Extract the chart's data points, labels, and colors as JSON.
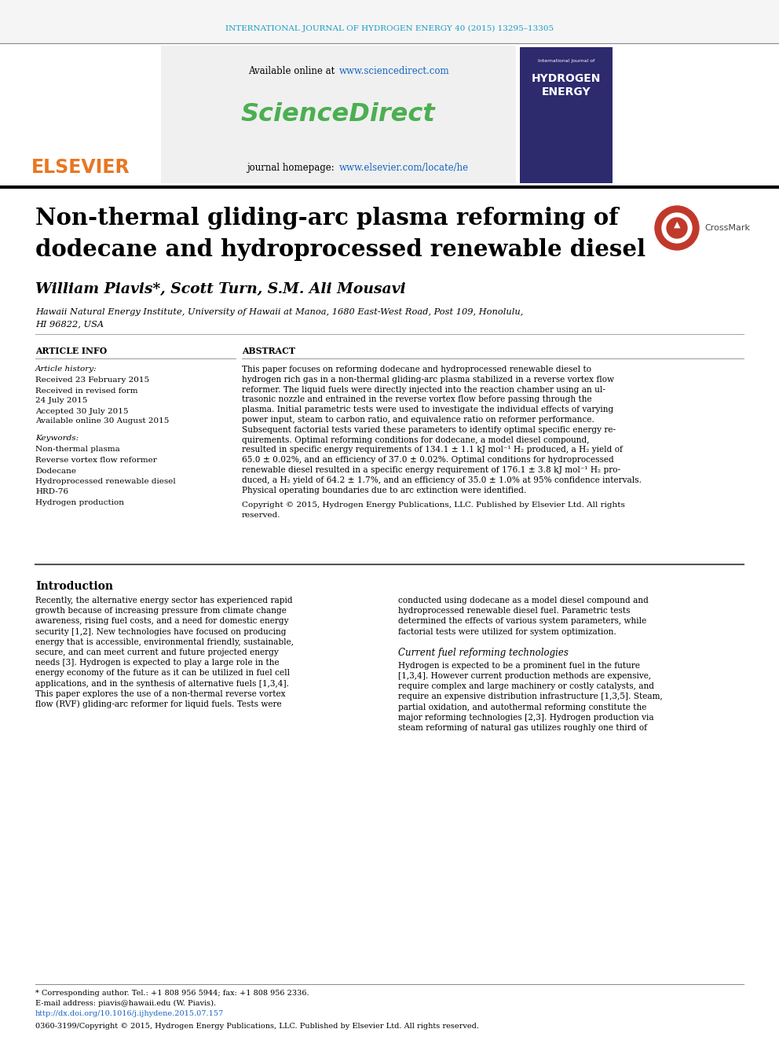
{
  "journal_header": "INTERNATIONAL JOURNAL OF HYDROGEN ENERGY 40 (2015) 13295–13305",
  "header_color": "#1a9cc4",
  "available_online": "Available online at ",
  "sciencedirect_url": "www.sciencedirect.com",
  "sciencedirect_text": "ScienceDirect",
  "sciencedirect_color": "#4caf50",
  "journal_homepage": "journal homepage: ",
  "elsevier_url": "www.elsevier.com/locate/he",
  "url_color": "#1565c0",
  "elsevier_orange": "#e87722",
  "title_line1": "Non-thermal gliding-arc plasma reforming of",
  "title_line2": "dodecane and hydroprocessed renewable diesel",
  "authors": "William Piavis*, Scott Turn, S.M. Ali Mousavi",
  "affiliation1": "Hawaii Natural Energy Institute, University of Hawaii at Manoa, 1680 East-West Road, Post 109, Honolulu,",
  "affiliation2": "HI 96822, USA",
  "article_info_header": "ARTICLE INFO",
  "article_history_header": "Article history:",
  "received1": "Received 23 February 2015",
  "received2": "Received in revised form",
  "received2b": "24 July 2015",
  "accepted": "Accepted 30 July 2015",
  "available_online2": "Available online 30 August 2015",
  "keywords_header": "Keywords:",
  "keyword1": "Non-thermal plasma",
  "keyword2": "Reverse vortex flow reformer",
  "keyword3": "Dodecane",
  "keyword4": "Hydroprocessed renewable diesel",
  "keyword5": "HRD-76",
  "keyword6": "Hydrogen production",
  "abstract_header": "ABSTRACT",
  "copyright_text": "Copyright © 2015, Hydrogen Energy Publications, LLC. Published by Elsevier Ltd. All rights\nreserved.",
  "intro_header": "Introduction",
  "current_tech_header": "Current fuel reforming technologies",
  "footer_star": "* Corresponding author. Tel.: +1 808 956 5944; fax: +1 808 956 2336.",
  "footer_email": "E-mail address: piavis@hawaii.edu (W. Piavis).",
  "footer_doi": "http://dx.doi.org/10.1016/j.ijhydene.2015.07.157",
  "footer_copyright": "0360-3199/Copyright © 2015, Hydrogen Energy Publications, LLC. Published by Elsevier Ltd. All rights reserved.",
  "bg_color": "#ffffff",
  "abstract_lines": [
    "This paper focuses on reforming dodecane and hydroprocessed renewable diesel to",
    "hydrogen rich gas in a non-thermal gliding-arc plasma stabilized in a reverse vortex flow",
    "reformer. The liquid fuels were directly injected into the reaction chamber using an ul-",
    "trasonic nozzle and entrained in the reverse vortex flow before passing through the",
    "plasma. Initial parametric tests were used to investigate the individual effects of varying",
    "power input, steam to carbon ratio, and equivalence ratio on reformer performance.",
    "Subsequent factorial tests varied these parameters to identify optimal specific energy re-",
    "quirements. Optimal reforming conditions for dodecane, a model diesel compound,",
    "resulted in specific energy requirements of 134.1 ± 1.1 kJ mol⁻¹ H₂ produced, a H₂ yield of",
    "65.0 ± 0.02%, and an efficiency of 37.0 ± 0.02%. Optimal conditions for hydroprocessed",
    "renewable diesel resulted in a specific energy requirement of 176.1 ± 3.8 kJ mol⁻¹ H₂ pro-",
    "duced, a H₂ yield of 64.2 ± 1.7%, and an efficiency of 35.0 ± 1.0% at 95% confidence intervals.",
    "Physical operating boundaries due to arc extinction were identified."
  ],
  "intro_left_lines": [
    "Recently, the alternative energy sector has experienced rapid",
    "growth because of increasing pressure from climate change",
    "awareness, rising fuel costs, and a need for domestic energy",
    "security [1,2]. New technologies have focused on producing",
    "energy that is accessible, environmental friendly, sustainable,",
    "secure, and can meet current and future projected energy",
    "needs [3]. Hydrogen is expected to play a large role in the",
    "energy economy of the future as it can be utilized in fuel cell",
    "applications, and in the synthesis of alternative fuels [1,3,4].",
    "This paper explores the use of a non-thermal reverse vortex",
    "flow (RVF) gliding-arc reformer for liquid fuels. Tests were"
  ],
  "intro_right_lines": [
    "conducted using dodecane as a model diesel compound and",
    "hydroprocessed renewable diesel fuel. Parametric tests",
    "determined the effects of various system parameters, while",
    "factorial tests were utilized for system optimization."
  ],
  "current_tech_lines": [
    "Hydrogen is expected to be a prominent fuel in the future",
    "[1,3,4]. However current production methods are expensive,",
    "require complex and large machinery or costly catalysts, and",
    "require an expensive distribution infrastructure [1,3,5]. Steam,",
    "partial oxidation, and autothermal reforming constitute the",
    "major reforming technologies [2,3]. Hydrogen production via",
    "steam reforming of natural gas utilizes roughly one third of"
  ],
  "journal_cover_lines": [
    "International Journal of",
    "HYDROGEN",
    "ENERGY"
  ]
}
